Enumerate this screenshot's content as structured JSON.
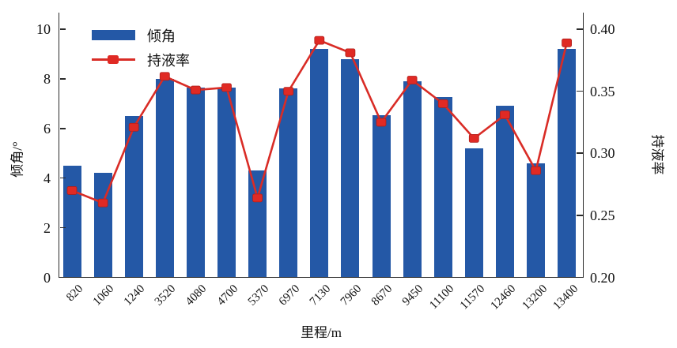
{
  "chart_data": {
    "type": "bar",
    "title": "",
    "xlabel": "里程/m",
    "ylabel_left": "倾角/°",
    "ylabel_right": "持液率",
    "categories": [
      "820",
      "1060",
      "1240",
      "3520",
      "4080",
      "4700",
      "5370",
      "6970",
      "7130",
      "7960",
      "8670",
      "9450",
      "11100",
      "11570",
      "12460",
      "13200",
      "13400"
    ],
    "series": [
      {
        "name": "倾角",
        "type": "bar",
        "axis": "left",
        "color": "#2458a6",
        "values": [
          4.5,
          4.2,
          6.5,
          8.0,
          7.65,
          7.65,
          4.3,
          7.6,
          9.2,
          8.8,
          6.55,
          7.9,
          7.25,
          5.2,
          6.9,
          4.6,
          9.2
        ]
      },
      {
        "name": "持液率",
        "type": "line",
        "axis": "right",
        "color": "#d92c26",
        "marker": "square",
        "values": [
          0.27,
          0.26,
          0.321,
          0.362,
          0.351,
          0.353,
          0.264,
          0.35,
          0.391,
          0.381,
          0.325,
          0.359,
          0.34,
          0.312,
          0.331,
          0.286,
          0.389
        ]
      }
    ],
    "ylim_left": [
      0,
      10
    ],
    "ylim_right": [
      0.2,
      0.4
    ],
    "yticks_left": [
      "0",
      "2",
      "4",
      "6",
      "8",
      "10"
    ],
    "yticks_right": [
      "0.20",
      "0.25",
      "0.30",
      "0.35",
      "0.40"
    ],
    "grid": false,
    "legend_position": "top-left"
  }
}
